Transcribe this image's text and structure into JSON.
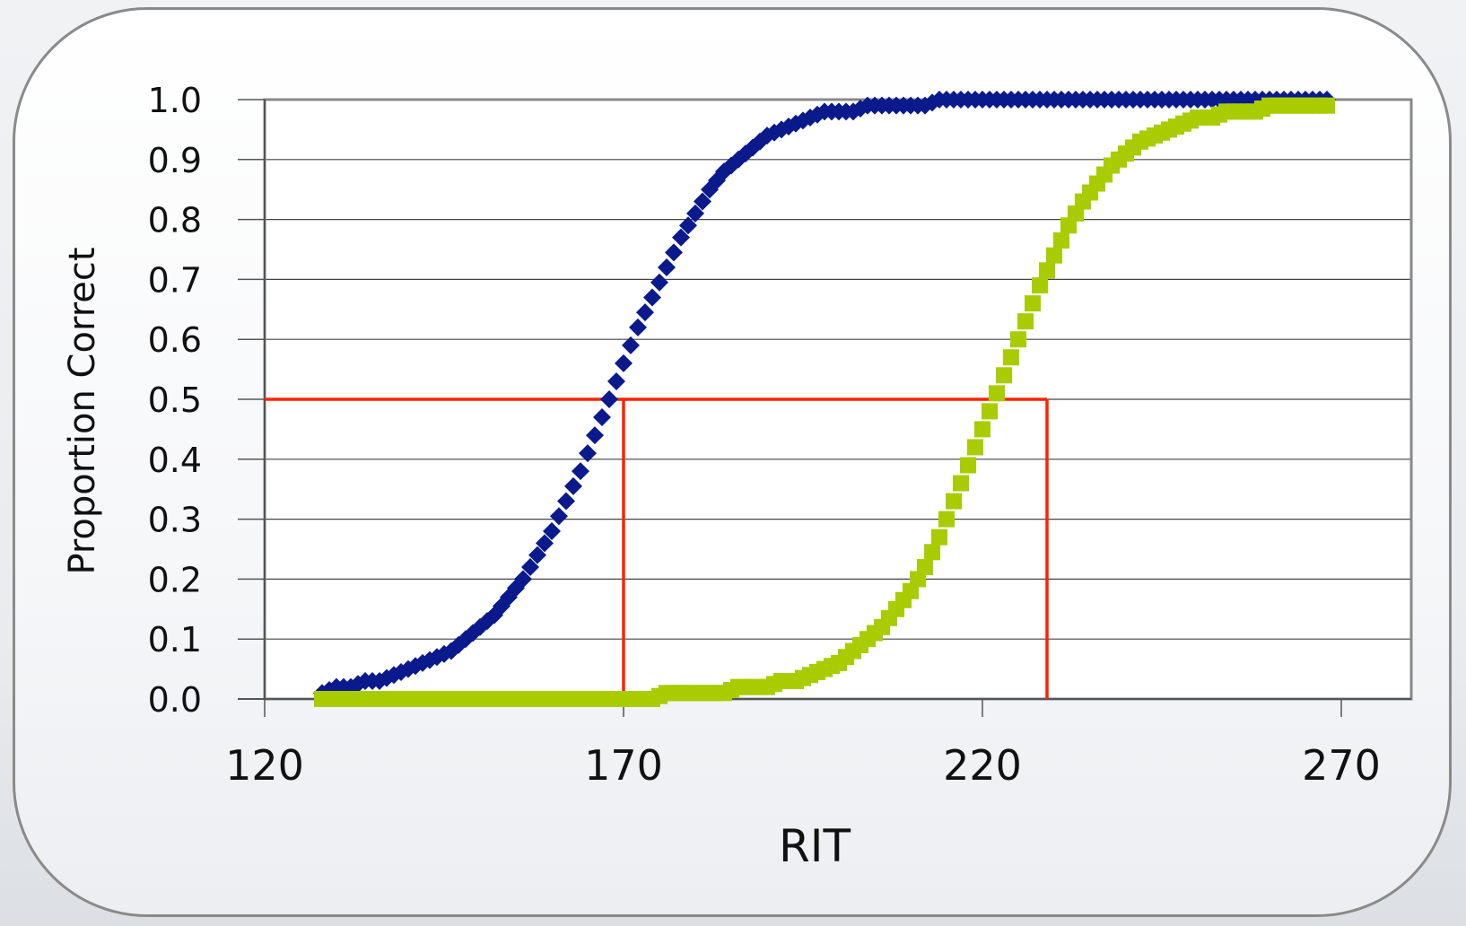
{
  "chart_data": {
    "type": "scatter",
    "title": "",
    "xlabel": "RIT",
    "ylabel": "Proportion Correct",
    "xlim": [
      120,
      270
    ],
    "ylim": [
      0,
      1
    ],
    "x_ticks": [
      120,
      170,
      220,
      270
    ],
    "y_ticks": [
      "0.0",
      "0.1",
      "0.2",
      "0.3",
      "0.4",
      "0.5",
      "0.6",
      "0.7",
      "0.8",
      "0.9",
      "1.0"
    ],
    "grid": "horizontal",
    "legend": "none",
    "series": [
      {
        "color": "#0a1a8c",
        "marker": "diamond",
        "x": [
          128,
          130,
          132,
          134,
          136,
          138,
          140,
          142,
          144,
          146,
          148,
          150,
          152,
          154,
          156,
          158,
          160,
          162,
          164,
          166,
          168,
          170,
          172,
          174,
          176,
          178,
          180,
          182,
          184,
          186,
          188,
          190,
          192,
          194,
          196,
          198,
          200,
          202,
          204,
          206,
          208,
          210,
          212,
          214,
          216,
          218,
          220,
          222,
          224,
          226,
          228,
          230,
          232,
          234,
          236,
          238,
          240,
          242,
          244,
          246,
          248,
          250,
          252,
          254,
          256,
          258,
          260,
          262,
          264,
          266,
          268
        ],
        "y": [
          0.01,
          0.02,
          0.02,
          0.03,
          0.03,
          0.04,
          0.05,
          0.06,
          0.07,
          0.08,
          0.1,
          0.12,
          0.14,
          0.17,
          0.2,
          0.24,
          0.28,
          0.33,
          0.38,
          0.44,
          0.5,
          0.56,
          0.62,
          0.67,
          0.72,
          0.77,
          0.81,
          0.85,
          0.88,
          0.9,
          0.92,
          0.94,
          0.95,
          0.96,
          0.97,
          0.98,
          0.98,
          0.98,
          0.99,
          0.99,
          0.99,
          0.99,
          0.99,
          1.0,
          1.0,
          1.0,
          1.0,
          1.0,
          1.0,
          1.0,
          1.0,
          1.0,
          1.0,
          1.0,
          1.0,
          1.0,
          1.0,
          1.0,
          1.0,
          1.0,
          1.0,
          1.0,
          1.0,
          1.0,
          1.0,
          1.0,
          1.0,
          1.0,
          1.0,
          1.0,
          1.0
        ]
      },
      {
        "color": "#a8cc00",
        "marker": "square",
        "x": [
          128,
          130,
          132,
          134,
          136,
          138,
          140,
          142,
          144,
          146,
          148,
          150,
          152,
          154,
          156,
          158,
          160,
          162,
          164,
          166,
          168,
          170,
          172,
          174,
          176,
          178,
          180,
          182,
          184,
          186,
          188,
          190,
          192,
          194,
          196,
          198,
          200,
          202,
          204,
          206,
          208,
          210,
          212,
          214,
          216,
          218,
          220,
          222,
          224,
          226,
          228,
          230,
          232,
          234,
          236,
          238,
          240,
          242,
          244,
          246,
          248,
          250,
          252,
          254,
          256,
          258,
          260,
          262,
          264,
          266,
          268
        ],
        "y": [
          0.0,
          0.0,
          0.0,
          0.0,
          0.0,
          0.0,
          0.0,
          0.0,
          0.0,
          0.0,
          0.0,
          0.0,
          0.0,
          0.0,
          0.0,
          0.0,
          0.0,
          0.0,
          0.0,
          0.0,
          0.0,
          0.0,
          0.0,
          0.0,
          0.01,
          0.01,
          0.01,
          0.01,
          0.01,
          0.02,
          0.02,
          0.02,
          0.03,
          0.03,
          0.04,
          0.05,
          0.06,
          0.08,
          0.1,
          0.12,
          0.15,
          0.18,
          0.22,
          0.27,
          0.33,
          0.39,
          0.45,
          0.51,
          0.57,
          0.63,
          0.69,
          0.74,
          0.79,
          0.83,
          0.86,
          0.89,
          0.91,
          0.93,
          0.94,
          0.95,
          0.96,
          0.97,
          0.97,
          0.98,
          0.98,
          0.98,
          0.99,
          0.99,
          0.99,
          0.99,
          0.99
        ]
      }
    ],
    "annotations": [
      {
        "type": "reference-line",
        "color": "#ff2200",
        "x": [
          120,
          229
        ],
        "y": [
          0.5,
          0.5
        ]
      },
      {
        "type": "reference-line",
        "color": "#ff2200",
        "x": [
          170,
          170
        ],
        "y": [
          0,
          0.5
        ]
      },
      {
        "type": "reference-line",
        "color": "#ff2200",
        "x": [
          229,
          229
        ],
        "y": [
          0,
          0.5
        ]
      }
    ]
  }
}
